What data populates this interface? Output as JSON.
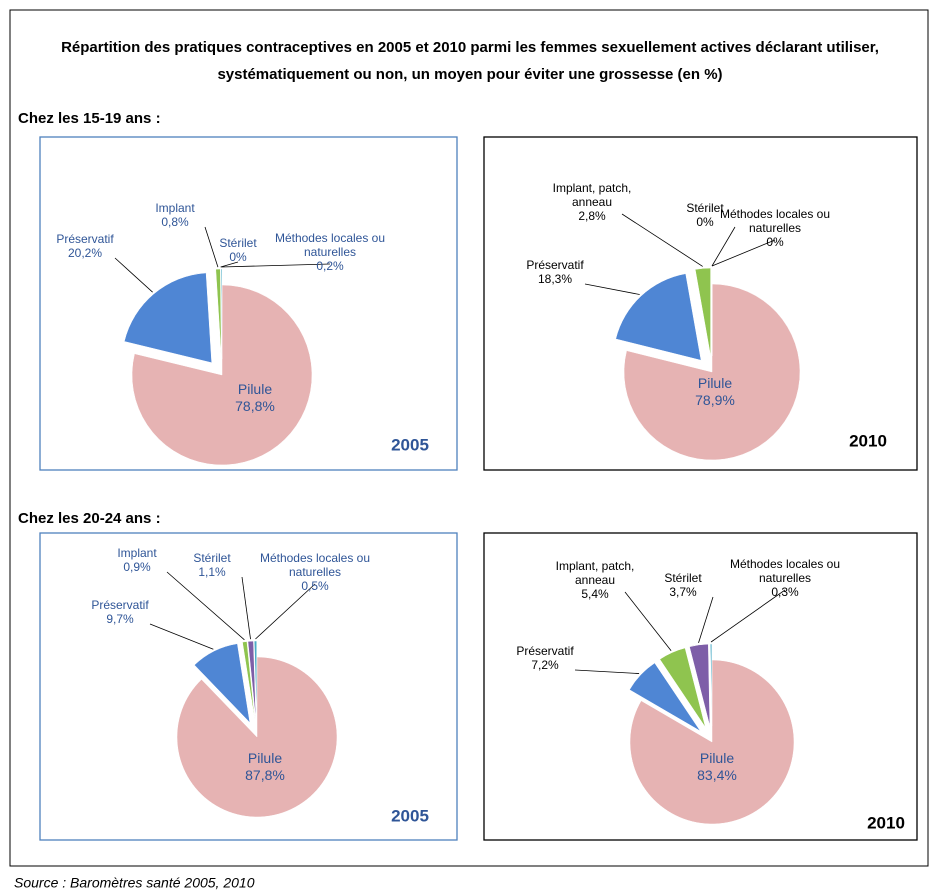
{
  "title": "Répartition des pratiques contraceptives en 2005 et 2010 parmi les femmes sexuellement actives déclarant utiliser, systématiquement ou non, un moyen pour éviter une grossesse (en %)",
  "sections": [
    "Chez les 15-19 ans :",
    "Chez les 20-24 ans :"
  ],
  "source": "Source : Baromètres santé 2005, 2010",
  "chart_data": [
    {
      "type": "pie",
      "title": "2005",
      "frame_color": "#4f81bd",
      "label_color": "#2f5597",
      "categories": [
        "Pilule",
        "Préservatif",
        "Implant",
        "Stérilet",
        "Méthodes locales ou naturelles"
      ],
      "values": [
        78.8,
        20.2,
        0.8,
        0,
        0.2
      ],
      "value_labels": [
        "78,8%",
        "20,2%",
        "0,8%",
        "0%",
        "0,2%"
      ],
      "colors": [
        "#e6b3b3",
        "#4f86d4",
        "#8fc44f",
        "#7e5ea8",
        "#4bacc6"
      ]
    },
    {
      "type": "pie",
      "title": "2010",
      "frame_color": "#000000",
      "label_color": "#000000",
      "categories": [
        "Pilule",
        "Préservatif",
        "Implant, patch, anneau",
        "Stérilet",
        "Méthodes locales ou naturelles"
      ],
      "values": [
        78.9,
        18.3,
        2.8,
        0,
        0
      ],
      "value_labels": [
        "78,9%",
        "18,3%",
        "2,8%",
        "0%",
        "0%"
      ],
      "colors": [
        "#e6b3b3",
        "#4f86d4",
        "#8fc44f",
        "#7e5ea8",
        "#4bacc6"
      ]
    },
    {
      "type": "pie",
      "title": "2005",
      "frame_color": "#4f81bd",
      "label_color": "#2f5597",
      "categories": [
        "Pilule",
        "Préservatif",
        "Implant",
        "Stérilet",
        "Méthodes locales ou naturelles"
      ],
      "values": [
        87.8,
        9.7,
        0.9,
        1.1,
        0.5
      ],
      "value_labels": [
        "87,8%",
        "9,7%",
        "0,9%",
        "1,1%",
        "0,5%"
      ],
      "colors": [
        "#e6b3b3",
        "#4f86d4",
        "#8fc44f",
        "#7e5ea8",
        "#4bacc6"
      ]
    },
    {
      "type": "pie",
      "title": "2010",
      "frame_color": "#000000",
      "label_color": "#000000",
      "categories": [
        "Pilule",
        "Préservatif",
        "Implant, patch, anneau",
        "Stérilet",
        "Méthodes locales ou naturelles"
      ],
      "values": [
        83.4,
        7.2,
        5.4,
        3.7,
        0.3
      ],
      "value_labels": [
        "83,4%",
        "7,2%",
        "5,4%",
        "3,7%",
        "0,3%"
      ],
      "colors": [
        "#e6b3b3",
        "#4f86d4",
        "#8fc44f",
        "#7e5ea8",
        "#4bacc6"
      ]
    }
  ]
}
